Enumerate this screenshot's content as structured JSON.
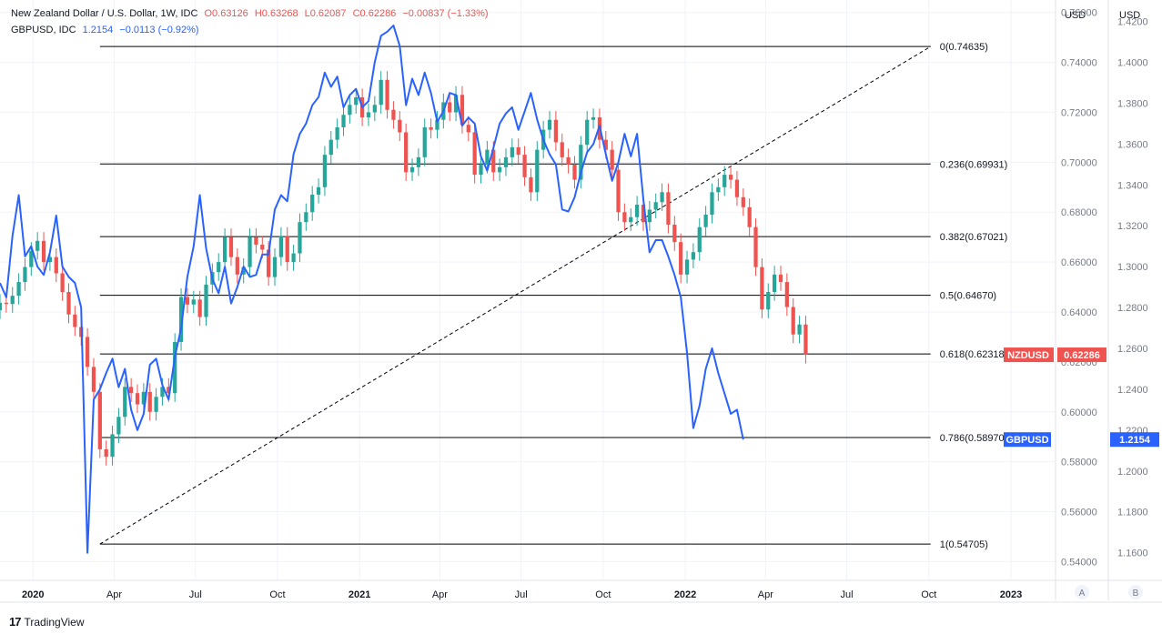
{
  "legend": {
    "primary": {
      "symbol": "New Zealand Dollar / U.S. Dollar, 1W, IDC",
      "open": "O0.63126",
      "high": "H0.63268",
      "low": "L0.62087",
      "close": "C0.62286",
      "change": "−0.00837 (−1.33%)"
    },
    "secondary": {
      "symbol": "GBPUSD, IDC",
      "value": "1.2154",
      "change": "−0.0113 (−0.92%)"
    }
  },
  "axis_titles": {
    "left": "USD",
    "right": "USD"
  },
  "scale_buttons": {
    "left": "A",
    "right": "B"
  },
  "footer": {
    "brand": "TradingView",
    "logo": "17"
  },
  "colors": {
    "up": "#26a69a",
    "down": "#ef5350",
    "line": "#2962ff",
    "fib": "#000000",
    "grid": "#f0f3fa"
  },
  "chart_data": [
    {
      "type": "candlestick",
      "series_name": "New Zealand Dollar / U.S. Dollar, 1W, IDC",
      "ylim": [
        0.5325,
        0.765
      ],
      "yticks": [
        0.54,
        0.56,
        0.58,
        0.6,
        0.62,
        0.64,
        0.66,
        0.68,
        0.7,
        0.72,
        0.74,
        0.76
      ],
      "ytick_labels": [
        "0.54000",
        "0.56000",
        "0.58000",
        "0.60000",
        "0.62000",
        "0.64000",
        "0.66000",
        "0.68000",
        "0.70000",
        "0.72000",
        "0.74000",
        "0.76000"
      ],
      "x_start": "2019-11-25",
      "x_end": "2023-02-20",
      "xticks": [
        {
          "date": "2020-01-01",
          "label": "2020",
          "bold": true
        },
        {
          "date": "2020-04-01",
          "label": "Apr",
          "bold": false
        },
        {
          "date": "2020-07-01",
          "label": "Jul",
          "bold": false
        },
        {
          "date": "2020-10-01",
          "label": "Oct",
          "bold": false
        },
        {
          "date": "2021-01-01",
          "label": "2021",
          "bold": true
        },
        {
          "date": "2021-04-01",
          "label": "Apr",
          "bold": false
        },
        {
          "date": "2021-07-01",
          "label": "Jul",
          "bold": false
        },
        {
          "date": "2021-10-01",
          "label": "Oct",
          "bold": false
        },
        {
          "date": "2022-01-01",
          "label": "2022",
          "bold": true
        },
        {
          "date": "2022-04-01",
          "label": "Apr",
          "bold": false
        },
        {
          "date": "2022-07-01",
          "label": "Jul",
          "bold": false
        },
        {
          "date": "2022-10-01",
          "label": "Oct",
          "bold": false
        },
        {
          "date": "2023-01-01",
          "label": "2023",
          "bold": true
        }
      ],
      "first_candle_date": "2019-11-25",
      "close_estimates": [
        0.6437,
        0.6432,
        0.6465,
        0.652,
        0.658,
        0.6645,
        0.6685,
        0.66,
        0.662,
        0.6555,
        0.648,
        0.639,
        0.634,
        0.63,
        0.618,
        0.608,
        0.585,
        0.582,
        0.591,
        0.598,
        0.61,
        0.6075,
        0.603,
        0.608,
        0.6,
        0.606,
        0.61,
        0.6075,
        0.628,
        0.646,
        0.643,
        0.645,
        0.638,
        0.651,
        0.656,
        0.66,
        0.67,
        0.662,
        0.655,
        0.658,
        0.67,
        0.667,
        0.665,
        0.654,
        0.662,
        0.6705,
        0.66,
        0.6635,
        0.676,
        0.68,
        0.687,
        0.69,
        0.703,
        0.709,
        0.714,
        0.719,
        0.723,
        0.726,
        0.718,
        0.72,
        0.723,
        0.733,
        0.721,
        0.717,
        0.712,
        0.696,
        0.698,
        0.702,
        0.714,
        0.713,
        0.717,
        0.724,
        0.72,
        0.727,
        0.715,
        0.712,
        0.695,
        0.699,
        0.705,
        0.696,
        0.698,
        0.702,
        0.706,
        0.703,
        0.694,
        0.688,
        0.705,
        0.713,
        0.717,
        0.708,
        0.702,
        0.699,
        0.693,
        0.707,
        0.717,
        0.718,
        0.709,
        0.705,
        0.697,
        0.68,
        0.676,
        0.678,
        0.683,
        0.676,
        0.681,
        0.684,
        0.688,
        0.675,
        0.668,
        0.655,
        0.661,
        0.664,
        0.674,
        0.679,
        0.688,
        0.69,
        0.695,
        0.693,
        0.686,
        0.682,
        0.674,
        0.658,
        0.641,
        0.648,
        0.655,
        0.652,
        0.642,
        0.631,
        0.635,
        0.6229
      ],
      "markers": [
        {
          "name": "NZDUSD",
          "value": "0.62286",
          "level": 0.62286
        }
      ],
      "fibonacci": {
        "start": {
          "date": "2020-03-16",
          "value": 0.54705
        },
        "end": {
          "date": "2022-10-03",
          "value": 0.74635
        },
        "levels": [
          {
            "ratio": 0,
            "label": "0(0.74635)",
            "value": 0.74635
          },
          {
            "ratio": 0.236,
            "label": "0.236(0.69931)",
            "value": 0.69931
          },
          {
            "ratio": 0.382,
            "label": "0.382(0.67021)",
            "value": 0.67021
          },
          {
            "ratio": 0.5,
            "label": "0.5(0.64670)",
            "value": 0.6467
          },
          {
            "ratio": 0.618,
            "label": "0.618(0.62318)",
            "value": 0.62318
          },
          {
            "ratio": 0.786,
            "label": "0.786(0.58970)",
            "value": 0.5897
          },
          {
            "ratio": 1,
            "label": "1(0.54705)",
            "value": 0.54705
          }
        ]
      }
    },
    {
      "type": "line",
      "series_name": "GBPUSD, IDC",
      "ylim": [
        1.1465,
        1.4305
      ],
      "yticks": [
        1.16,
        1.18,
        1.2,
        1.22,
        1.24,
        1.26,
        1.28,
        1.3,
        1.32,
        1.34,
        1.36,
        1.38,
        1.4,
        1.42
      ],
      "ytick_labels": [
        "1.1600",
        "1.1800",
        "1.2000",
        "1.2200",
        "1.2400",
        "1.2600",
        "1.2800",
        "1.3000",
        "1.3200",
        "1.3400",
        "1.3600",
        "1.3800",
        "1.4000",
        "1.4200"
      ],
      "first_date": "2019-11-25",
      "values_estimate": [
        1.292,
        1.285,
        1.315,
        1.335,
        1.305,
        1.31,
        1.3,
        1.296,
        1.307,
        1.325,
        1.3,
        1.295,
        1.292,
        1.28,
        1.16,
        1.235,
        1.24,
        1.248,
        1.255,
        1.241,
        1.25,
        1.23,
        1.22,
        1.228,
        1.252,
        1.255,
        1.242,
        1.235,
        1.256,
        1.27,
        1.295,
        1.31,
        1.335,
        1.309,
        1.294,
        1.287,
        1.3,
        1.282,
        1.29,
        1.3,
        1.295,
        1.296,
        1.306,
        1.306,
        1.328,
        1.335,
        1.332,
        1.355,
        1.365,
        1.37,
        1.379,
        1.383,
        1.395,
        1.388,
        1.393,
        1.378,
        1.384,
        1.387,
        1.378,
        1.381,
        1.4,
        1.413,
        1.415,
        1.418,
        1.408,
        1.379,
        1.392,
        1.384,
        1.395,
        1.385,
        1.371,
        1.376,
        1.385,
        1.384,
        1.369,
        1.373,
        1.37,
        1.354,
        1.347,
        1.358,
        1.37,
        1.375,
        1.378,
        1.367,
        1.376,
        1.385,
        1.372,
        1.362,
        1.355,
        1.35,
        1.328,
        1.327,
        1.334,
        1.346,
        1.356,
        1.36,
        1.369,
        1.355,
        1.342,
        1.351,
        1.365,
        1.354,
        1.365,
        1.333,
        1.307,
        1.313,
        1.313,
        1.305,
        1.296,
        1.285,
        1.258,
        1.221,
        1.232,
        1.25,
        1.26,
        1.248,
        1.238,
        1.228,
        1.23,
        1.2154
      ]
    }
  ]
}
